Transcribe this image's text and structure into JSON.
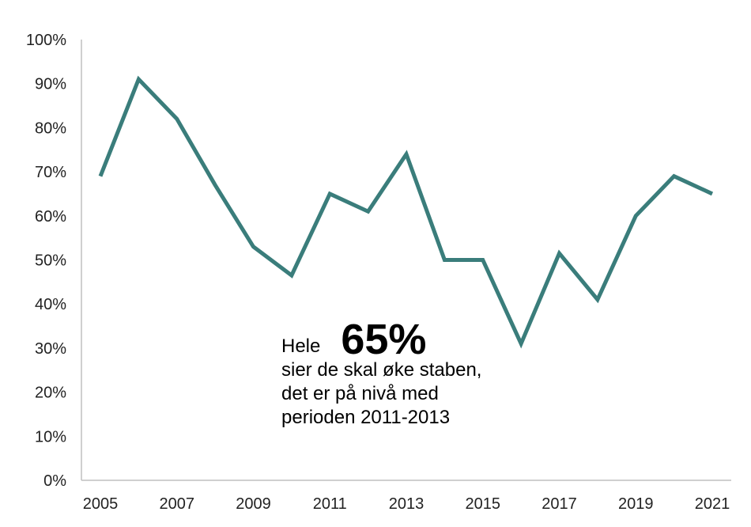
{
  "chart_data": {
    "type": "line",
    "title": "",
    "xlabel": "",
    "ylabel": "",
    "x": [
      2005,
      2006,
      2007,
      2008,
      2009,
      2010,
      2011,
      2012,
      2013,
      2014,
      2015,
      2016,
      2017,
      2018,
      2019,
      2020,
      2021
    ],
    "series": [
      {
        "values": [
          69,
          91,
          82,
          67,
          53,
          46.5,
          65,
          61,
          74,
          50,
          50,
          31,
          51.5,
          41,
          60,
          69,
          65
        ],
        "color": "#3a7d7b"
      }
    ],
    "ylim": [
      0,
      100
    ],
    "yticks": [
      "0%",
      "10%",
      "20%",
      "30%",
      "40%",
      "50%",
      "60%",
      "70%",
      "80%",
      "90%",
      "100%"
    ],
    "xticks": [
      "2005",
      "2007",
      "2009",
      "2011",
      "2013",
      "2015",
      "2017",
      "2019",
      "2021"
    ],
    "grid": false,
    "annotation": {
      "prefix": "Hele",
      "value": "65%",
      "lines": [
        "sier de skal øke staben,",
        "det er på nivå med",
        "perioden 2011-2013"
      ]
    }
  }
}
